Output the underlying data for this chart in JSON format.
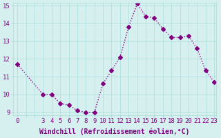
{
  "x": [
    0,
    3,
    4,
    5,
    6,
    7,
    8,
    9,
    10,
    11,
    12,
    13,
    14,
    15,
    16,
    17,
    18,
    19,
    20,
    21,
    22,
    23
  ],
  "y": [
    11.7,
    10.0,
    10.0,
    9.5,
    9.4,
    9.1,
    9.0,
    9.0,
    10.6,
    11.35,
    12.1,
    13.8,
    15.1,
    14.4,
    14.3,
    13.7,
    13.2,
    13.2,
    13.3,
    12.6,
    11.35,
    10.7
  ],
  "line_color": "#800080",
  "marker": "D",
  "marker_size": 3,
  "bg_color": "#d6f0f0",
  "grid_color": "#aadddd",
  "xlabel": "Windchill (Refroidissement éolien,°C)",
  "xlim": [
    0,
    23
  ],
  "ylim": [
    9,
    15
  ],
  "yticks": [
    9,
    10,
    11,
    12,
    13,
    14,
    15
  ],
  "tick_color": "#800080",
  "label_fontsize": 7,
  "tick_fontsize": 6.5,
  "linewidth": 1.0
}
